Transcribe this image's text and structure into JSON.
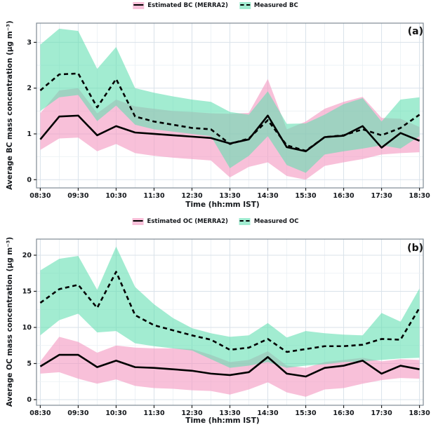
{
  "figure": {
    "background": "#ffffff",
    "text_color": "#15181c"
  },
  "chart_data": [
    {
      "type": "line",
      "panel_label": "(a)",
      "xlabel": "Time (hh:mm IST)",
      "ylabel": "Average BC mass concentration (µg m⁻³)",
      "x_categories": [
        "08:30",
        "09:00",
        "09:30",
        "10:00",
        "10:30",
        "11:00",
        "11:30",
        "12:00",
        "12:30",
        "13:00",
        "13:30",
        "14:00",
        "14:30",
        "15:00",
        "15:30",
        "16:00",
        "16:30",
        "17:00",
        "17:30",
        "18:00",
        "18:30"
      ],
      "x_tick_labels": [
        "08:30",
        "09:30",
        "10:30",
        "11:30",
        "12:30",
        "13:30",
        "14:30",
        "15:30",
        "16:30",
        "17:30",
        "18:30"
      ],
      "y_ticks": [
        0,
        1,
        2,
        3
      ],
      "y_minor_step": 0.5,
      "ylim": [
        -0.18,
        3.42
      ],
      "xlim_pad": 0.2,
      "grid": true,
      "legend_position": "top-center",
      "series": [
        {
          "name": "Estimated BC (MERRA2)",
          "line_style": "solid",
          "line_color": "#000000",
          "band_color": "#f49ac2",
          "band_opacity": 0.62,
          "legend_swatch_color": "#f8c0d9",
          "values": [
            0.88,
            1.38,
            1.4,
            0.97,
            1.17,
            1.03,
            1.0,
            0.97,
            0.94,
            0.91,
            0.79,
            0.88,
            1.4,
            0.71,
            0.62,
            0.93,
            0.96,
            1.17,
            0.7,
            1.02,
            0.85
          ],
          "band_low": [
            0.65,
            0.9,
            0.92,
            0.62,
            0.78,
            0.58,
            0.52,
            0.48,
            0.45,
            0.42,
            0.05,
            0.28,
            0.38,
            0.08,
            0.0,
            0.3,
            0.38,
            0.45,
            0.55,
            0.58,
            0.6
          ],
          "band_high": [
            1.45,
            1.95,
            2.0,
            1.45,
            1.75,
            1.6,
            1.55,
            1.5,
            1.48,
            1.45,
            1.44,
            1.46,
            2.2,
            1.1,
            1.27,
            1.55,
            1.7,
            1.81,
            1.35,
            1.33,
            1.15
          ]
        },
        {
          "name": "Measured BC",
          "line_style": "dashed",
          "line_color": "#000000",
          "band_color": "#5edeaf",
          "band_opacity": 0.58,
          "legend_swatch_color": "#a1ecd1",
          "values": [
            1.95,
            2.3,
            2.32,
            1.58,
            2.2,
            1.38,
            1.27,
            1.2,
            1.13,
            1.1,
            0.78,
            0.9,
            1.3,
            0.75,
            0.63,
            0.93,
            0.97,
            1.1,
            0.97,
            1.13,
            1.42
          ],
          "band_low": [
            1.5,
            1.8,
            1.85,
            1.28,
            1.62,
            1.2,
            1.1,
            1.05,
            1.0,
            0.95,
            0.25,
            0.52,
            0.95,
            0.32,
            0.15,
            0.55,
            0.62,
            0.68,
            0.75,
            0.68,
            0.95
          ],
          "band_high": [
            2.95,
            3.3,
            3.25,
            2.42,
            2.9,
            2.0,
            1.9,
            1.82,
            1.75,
            1.7,
            1.48,
            1.42,
            1.93,
            1.22,
            1.23,
            1.42,
            1.65,
            1.78,
            1.27,
            1.75,
            1.8
          ]
        }
      ]
    },
    {
      "type": "line",
      "panel_label": "(b)",
      "xlabel": "Time (hh:mm IST)",
      "ylabel": "Average OC mass concentration (µg m⁻³)",
      "x_categories": [
        "08:30",
        "09:00",
        "09:30",
        "10:00",
        "10:30",
        "11:00",
        "11:30",
        "12:00",
        "12:30",
        "13:00",
        "13:30",
        "14:00",
        "14:30",
        "15:00",
        "15:30",
        "16:00",
        "16:30",
        "17:00",
        "17:30",
        "18:00",
        "18:30"
      ],
      "x_tick_labels": [
        "08:30",
        "09:30",
        "10:30",
        "11:30",
        "12:30",
        "13:30",
        "14:30",
        "15:30",
        "16:30",
        "17:30",
        "18:30"
      ],
      "y_ticks": [
        0,
        5,
        10,
        15,
        20
      ],
      "y_minor_step": 2.5,
      "ylim": [
        -0.78,
        22.23
      ],
      "xlim_pad": 0.2,
      "grid": true,
      "legend_position": "top-center",
      "series": [
        {
          "name": "Estimated OC (MERRA2)",
          "line_style": "solid",
          "line_color": "#000000",
          "band_color": "#f49ac2",
          "band_opacity": 0.62,
          "legend_swatch_color": "#f8c0d9",
          "values": [
            4.6,
            6.2,
            6.2,
            4.5,
            5.4,
            4.5,
            4.4,
            4.2,
            4.0,
            3.6,
            3.4,
            3.8,
            5.9,
            3.6,
            3.2,
            4.4,
            4.7,
            5.4,
            3.6,
            4.7,
            4.2
          ],
          "band_low": [
            3.6,
            3.8,
            2.9,
            2.2,
            2.8,
            1.9,
            1.6,
            1.5,
            1.3,
            1.2,
            0.7,
            1.4,
            2.4,
            1.0,
            0.4,
            1.4,
            1.6,
            2.2,
            2.7,
            3.0,
            2.9
          ],
          "band_high": [
            5.3,
            8.7,
            8.0,
            6.5,
            7.5,
            7.2,
            7.1,
            7.1,
            7.0,
            6.2,
            5.2,
            5.5,
            6.7,
            4.7,
            4.4,
            5.2,
            5.5,
            5.8,
            5.3,
            5.6,
            5.5
          ]
        },
        {
          "name": "Measured OC",
          "line_style": "dashed",
          "line_color": "#000000",
          "band_color": "#5edeaf",
          "band_opacity": 0.58,
          "legend_swatch_color": "#a1ecd1",
          "values": [
            13.4,
            15.3,
            15.9,
            12.7,
            17.7,
            11.7,
            10.3,
            9.6,
            8.9,
            8.3,
            6.9,
            7.2,
            8.4,
            6.6,
            7.0,
            7.4,
            7.4,
            7.6,
            8.4,
            8.3,
            12.7
          ],
          "band_low": [
            8.9,
            11.0,
            11.9,
            9.3,
            9.5,
            7.8,
            7.4,
            7.1,
            6.8,
            5.6,
            4.4,
            4.7,
            5.2,
            4.4,
            4.7,
            4.9,
            5.2,
            5.3,
            5.5,
            5.7,
            5.8
          ],
          "band_high": [
            17.9,
            19.5,
            19.9,
            15.2,
            21.2,
            15.6,
            13.2,
            11.3,
            9.9,
            9.2,
            8.7,
            8.9,
            10.6,
            8.6,
            9.5,
            9.2,
            9.0,
            8.9,
            12.0,
            10.8,
            15.4
          ]
        }
      ]
    }
  ]
}
